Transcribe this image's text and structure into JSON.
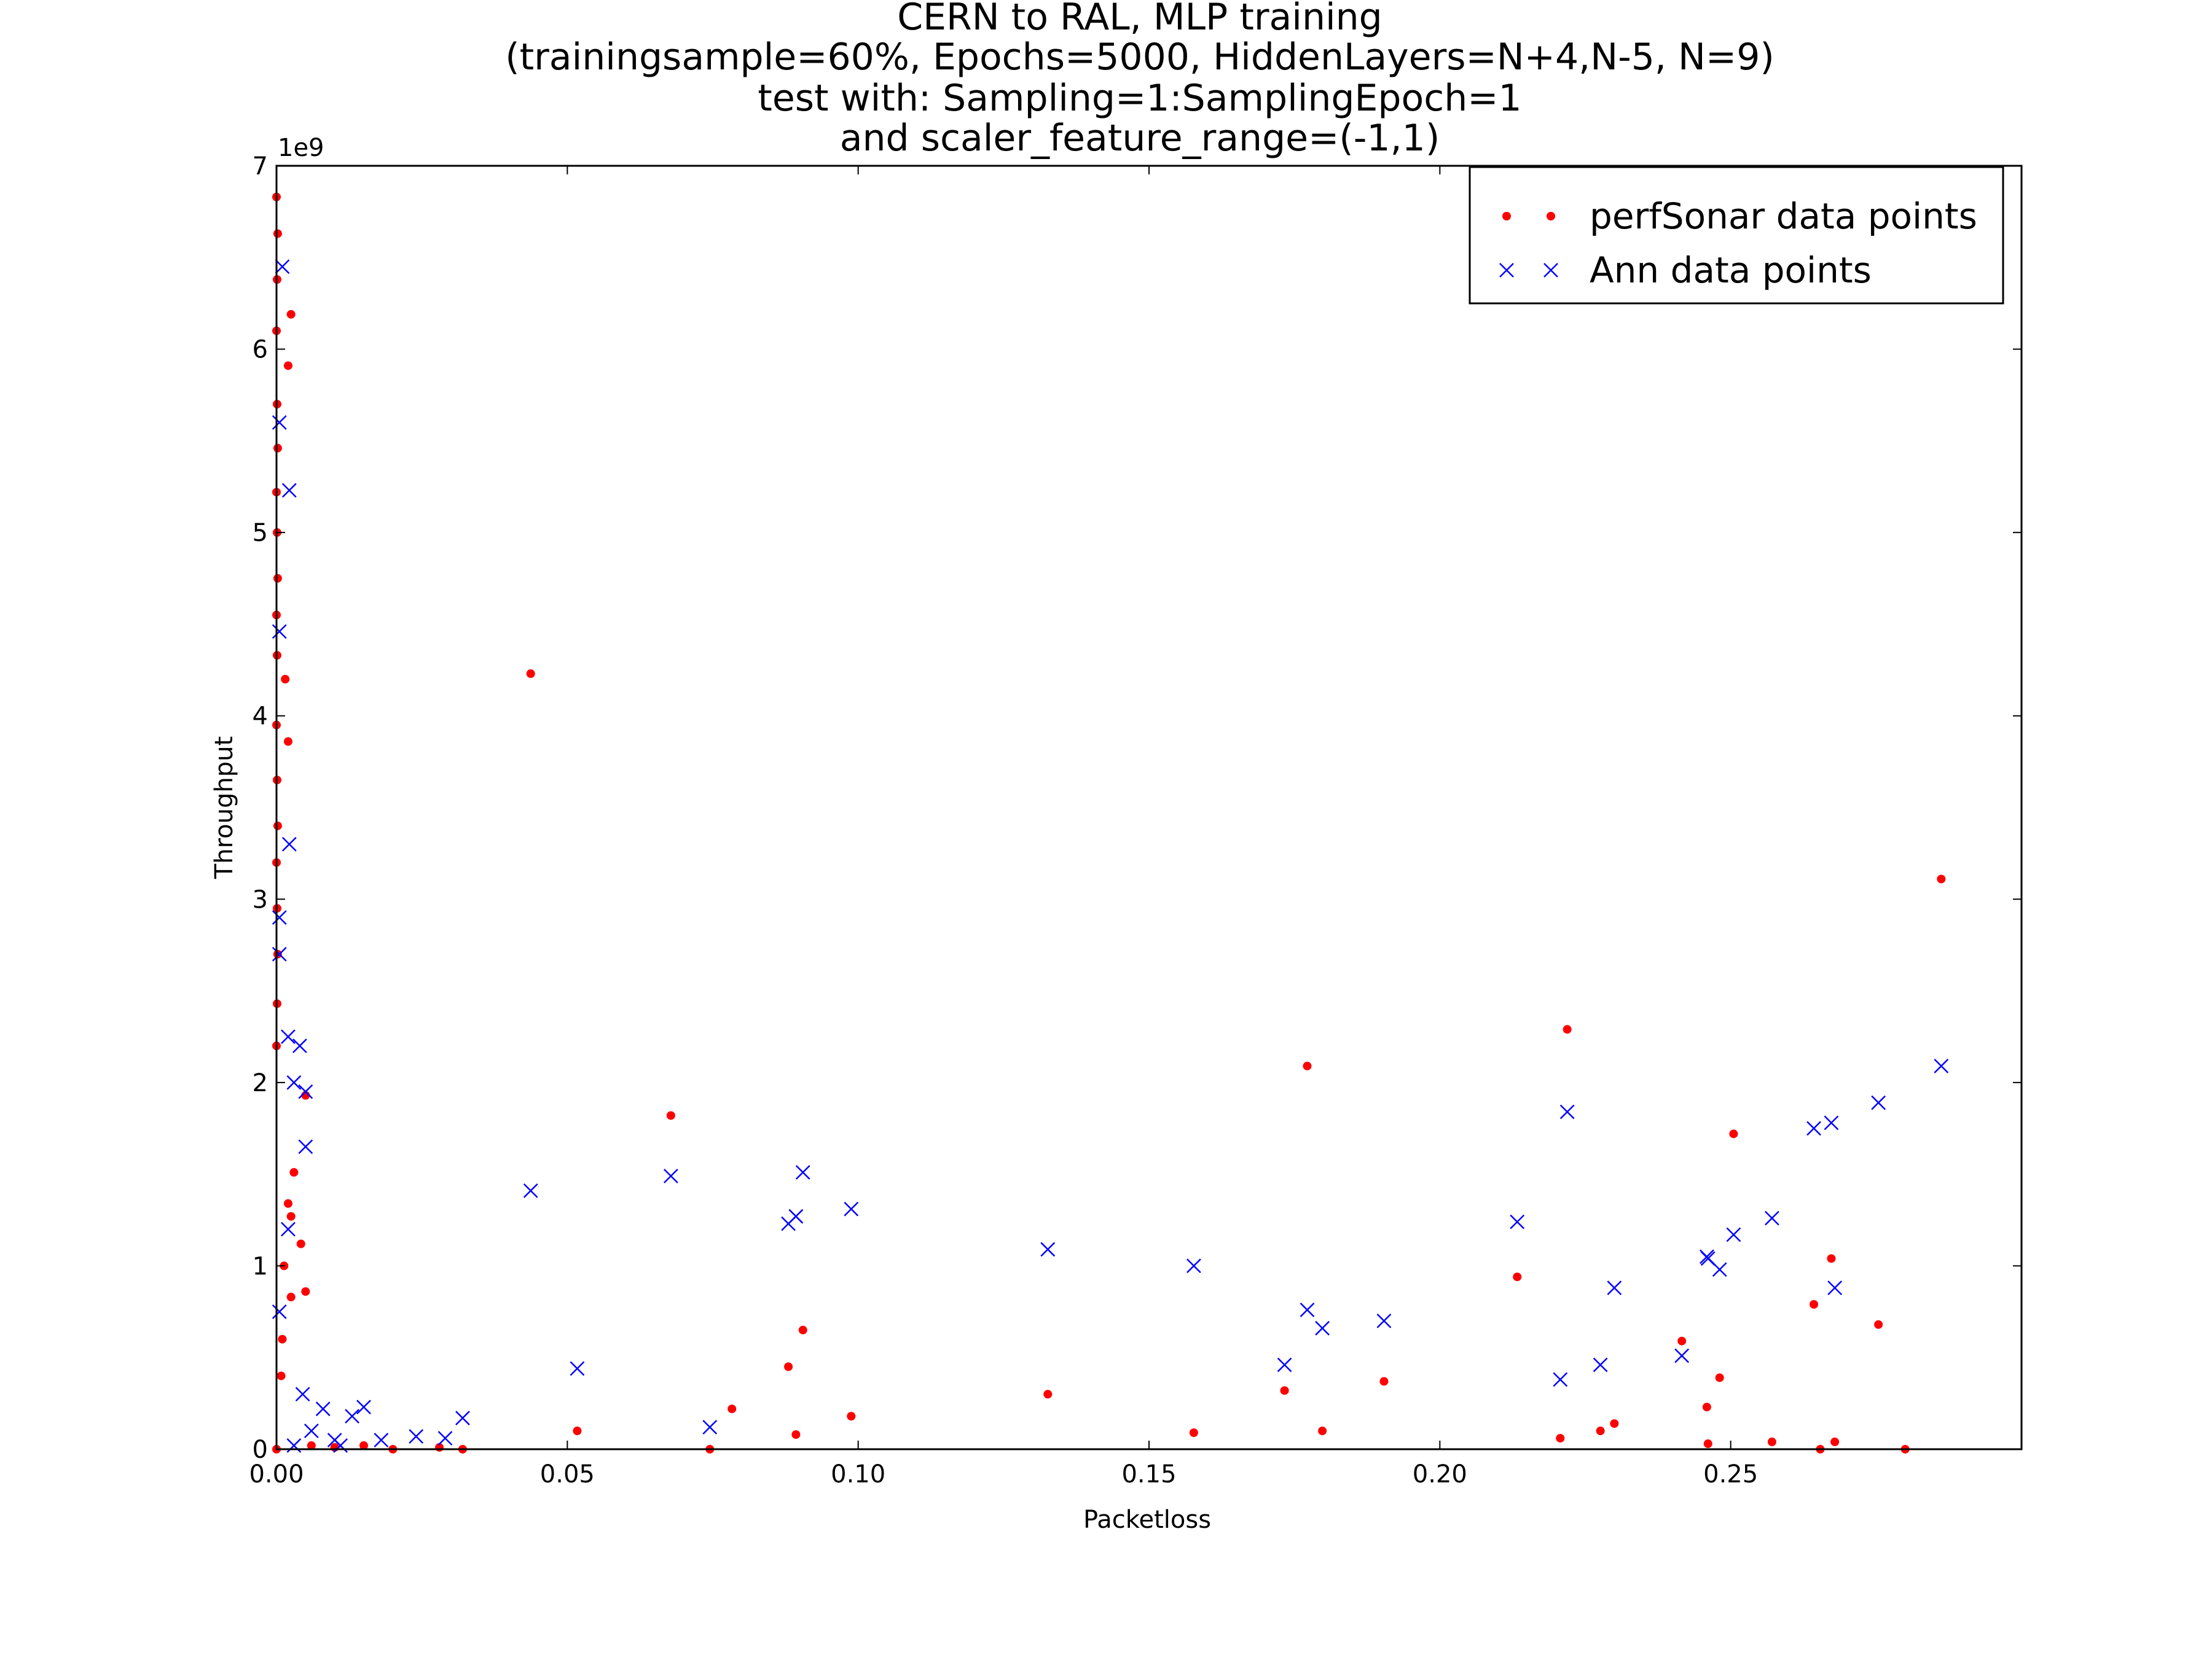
{
  "chart_data": {
    "type": "scatter",
    "title_lines": [
      "CERN to RAL, MLP training",
      "(trainingsample=60%, Epochs=5000, HiddenLayers=N+4,N-5, N=9)",
      "test with: Sampling=1:SamplingEpoch=1",
      "and scaler_feature_range=(-1,1)"
    ],
    "xlabel": "Packetloss",
    "ylabel": "Throughput",
    "y_offset_label": "1e9",
    "xlim": [
      0.0,
      0.3
    ],
    "ylim": [
      0,
      7
    ],
    "x_ticks": [
      0.0,
      0.05,
      0.1,
      0.15,
      0.2,
      0.25
    ],
    "x_tick_labels": [
      "0.00",
      "0.05",
      "0.10",
      "0.15",
      "0.20",
      "0.25"
    ],
    "y_ticks": [
      0,
      1,
      2,
      3,
      4,
      5,
      6,
      7
    ],
    "y_tick_labels": [
      "0",
      "1",
      "2",
      "3",
      "4",
      "5",
      "6",
      "7"
    ],
    "grid": false,
    "legend_position": "top-right",
    "series": [
      {
        "name": "perfSonar data points",
        "marker": "dot",
        "color": "#ff0000",
        "points": [
          [
            0.0437,
            4.23
          ],
          [
            0.0678,
            1.82
          ],
          [
            0.0517,
            0.1
          ],
          [
            0.0745,
            0.0
          ],
          [
            0.0783,
            0.22
          ],
          [
            0.088,
            0.45
          ],
          [
            0.0893,
            0.08
          ],
          [
            0.0905,
            0.65
          ],
          [
            0.0988,
            0.18
          ],
          [
            0.1326,
            0.3
          ],
          [
            0.1577,
            0.09
          ],
          [
            0.1733,
            0.32
          ],
          [
            0.1772,
            2.09
          ],
          [
            0.1798,
            0.1
          ],
          [
            0.1904,
            0.37
          ],
          [
            0.2133,
            0.94
          ],
          [
            0.2207,
            0.06
          ],
          [
            0.2219,
            2.29
          ],
          [
            0.2276,
            0.1
          ],
          [
            0.23,
            0.14
          ],
          [
            0.2416,
            0.59
          ],
          [
            0.2459,
            0.23
          ],
          [
            0.2461,
            0.03
          ],
          [
            0.2481,
            0.39
          ],
          [
            0.2505,
            1.72
          ],
          [
            0.2571,
            0.04
          ],
          [
            0.2643,
            0.79
          ],
          [
            0.2654,
            0.0
          ],
          [
            0.2673,
            1.04
          ],
          [
            0.2679,
            0.04
          ],
          [
            0.2754,
            0.68
          ],
          [
            0.28,
            0.0
          ],
          [
            0.2862,
            3.11
          ],
          [
            0.0,
            6.83
          ],
          [
            0.0002,
            6.63
          ],
          [
            0.0001,
            6.38
          ],
          [
            0.0,
            6.1
          ],
          [
            0.0025,
            6.19
          ],
          [
            0.002,
            5.91
          ],
          [
            0.0001,
            5.7
          ],
          [
            0.0002,
            5.46
          ],
          [
            0.0,
            5.22
          ],
          [
            0.0001,
            5.0
          ],
          [
            0.0002,
            4.75
          ],
          [
            0.0,
            4.55
          ],
          [
            0.0001,
            4.33
          ],
          [
            0.0015,
            4.2
          ],
          [
            0.002,
            3.86
          ],
          [
            0.0,
            3.95
          ],
          [
            0.0001,
            3.65
          ],
          [
            0.0002,
            3.4
          ],
          [
            0.0,
            3.2
          ],
          [
            0.0001,
            2.95
          ],
          [
            0.0002,
            2.7
          ],
          [
            0.0001,
            2.43
          ],
          [
            0.0,
            2.2
          ],
          [
            0.005,
            1.93
          ],
          [
            0.003,
            1.51
          ],
          [
            0.002,
            1.34
          ],
          [
            0.0025,
            1.27
          ],
          [
            0.0042,
            1.12
          ],
          [
            0.0013,
            1.0
          ],
          [
            0.0025,
            0.83
          ],
          [
            0.005,
            0.86
          ],
          [
            0.001,
            0.6
          ],
          [
            0.0008,
            0.4
          ],
          [
            0.0,
            0.0
          ],
          [
            0.006,
            0.02
          ],
          [
            0.01,
            0.01
          ],
          [
            0.015,
            0.02
          ],
          [
            0.02,
            0.0
          ],
          [
            0.028,
            0.01
          ],
          [
            0.032,
            0.0
          ]
        ]
      },
      {
        "name": "Ann data points",
        "marker": "x",
        "color": "#0000ff",
        "points": [
          [
            0.0437,
            1.41
          ],
          [
            0.0678,
            1.49
          ],
          [
            0.0517,
            0.44
          ],
          [
            0.0745,
            0.12
          ],
          [
            0.088,
            1.23
          ],
          [
            0.0893,
            1.27
          ],
          [
            0.0905,
            1.51
          ],
          [
            0.0988,
            1.31
          ],
          [
            0.1326,
            1.09
          ],
          [
            0.1577,
            1.0
          ],
          [
            0.1733,
            0.46
          ],
          [
            0.1772,
            0.76
          ],
          [
            0.1798,
            0.66
          ],
          [
            0.1904,
            0.7
          ],
          [
            0.2133,
            1.24
          ],
          [
            0.2207,
            0.38
          ],
          [
            0.2219,
            1.84
          ],
          [
            0.2276,
            0.46
          ],
          [
            0.23,
            0.88
          ],
          [
            0.2416,
            0.51
          ],
          [
            0.2459,
            1.05
          ],
          [
            0.2461,
            1.04
          ],
          [
            0.2481,
            0.98
          ],
          [
            0.2505,
            1.17
          ],
          [
            0.2571,
            1.26
          ],
          [
            0.2643,
            1.75
          ],
          [
            0.2673,
            1.78
          ],
          [
            0.2679,
            0.88
          ],
          [
            0.2754,
            1.89
          ],
          [
            0.2862,
            2.09
          ],
          [
            0.001,
            6.45
          ],
          [
            0.0005,
            5.6
          ],
          [
            0.0022,
            5.23
          ],
          [
            0.0005,
            4.46
          ],
          [
            0.0022,
            3.3
          ],
          [
            0.0005,
            2.9
          ],
          [
            0.0005,
            2.7
          ],
          [
            0.002,
            2.25
          ],
          [
            0.004,
            2.2
          ],
          [
            0.005,
            1.95
          ],
          [
            0.003,
            2.0
          ],
          [
            0.005,
            1.65
          ],
          [
            0.002,
            1.2
          ],
          [
            0.0005,
            0.75
          ],
          [
            0.0045,
            0.3
          ],
          [
            0.008,
            0.22
          ],
          [
            0.013,
            0.18
          ],
          [
            0.015,
            0.23
          ],
          [
            0.006,
            0.1
          ],
          [
            0.01,
            0.05
          ],
          [
            0.018,
            0.05
          ],
          [
            0.024,
            0.07
          ],
          [
            0.029,
            0.06
          ],
          [
            0.032,
            0.17
          ],
          [
            0.003,
            0.02
          ],
          [
            0.011,
            0.02
          ]
        ]
      }
    ]
  }
}
